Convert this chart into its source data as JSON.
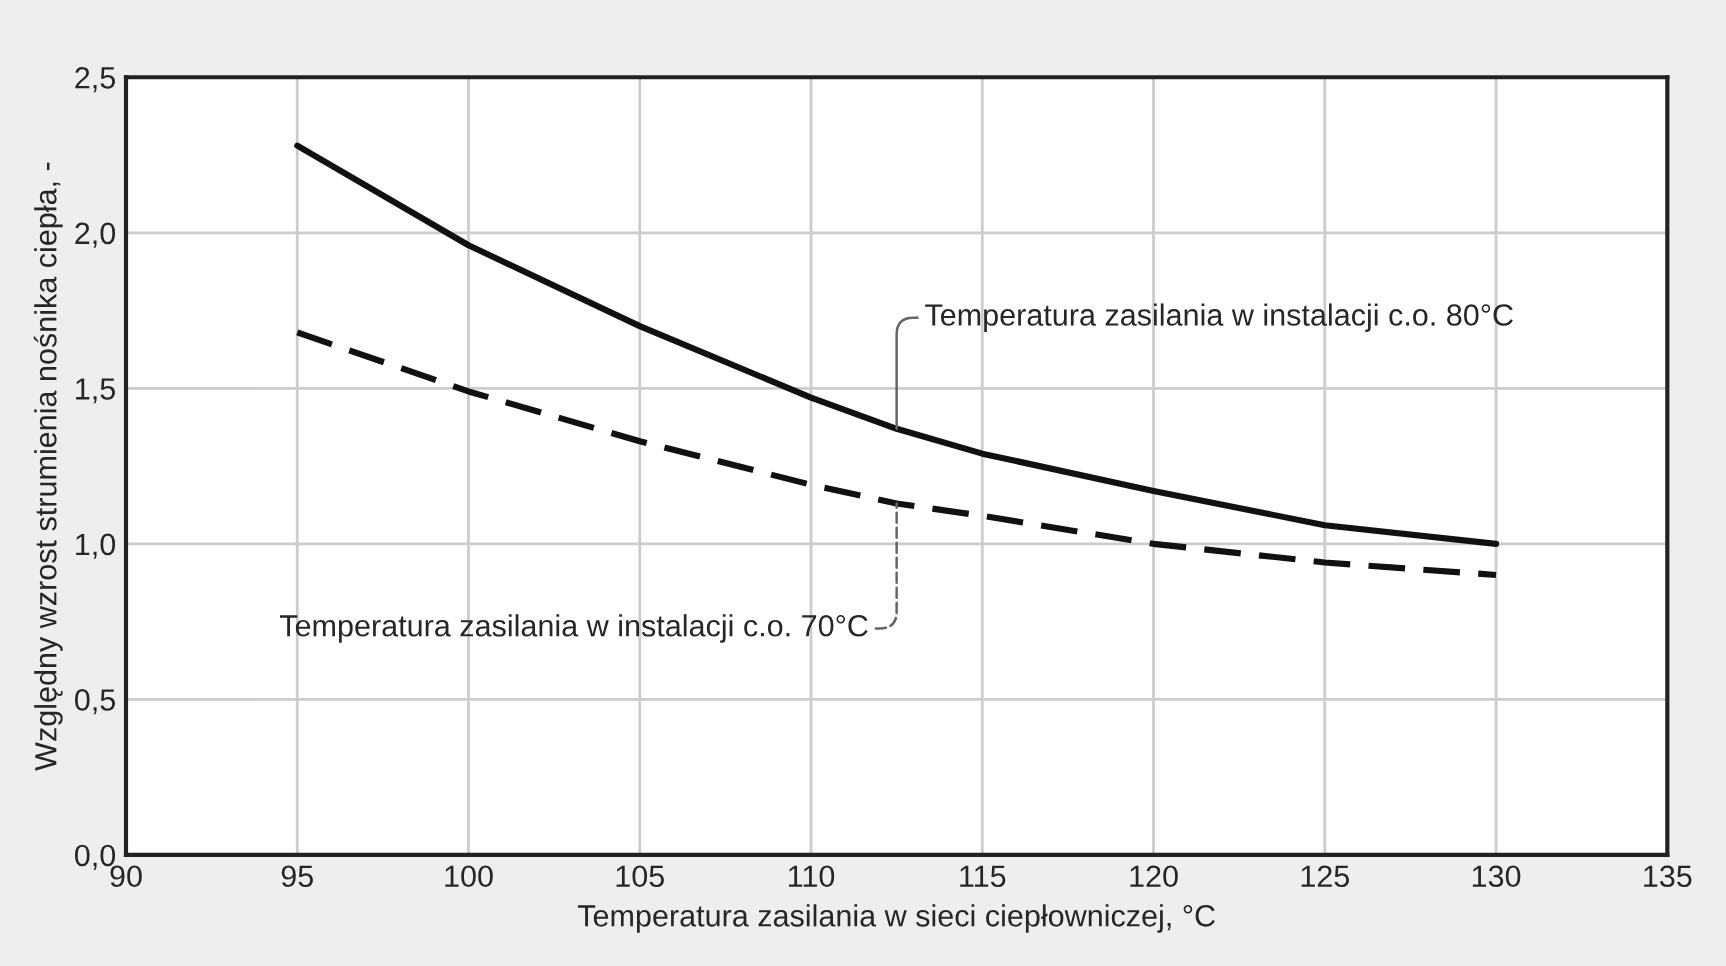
{
  "chart_data": {
    "type": "line",
    "xlabel": "Temperatura zasilania w sieci ciepłowniczej, °C",
    "ylabel": "Względny wzrost strumienia nośnika ciepła, -",
    "x": [
      95,
      100,
      105,
      110,
      112.5,
      115,
      120,
      125,
      130
    ],
    "series": [
      {
        "color": "#111111",
        "line_style": "solid",
        "values": [
          2.28,
          1.96,
          1.7,
          1.47,
          1.37,
          1.29,
          1.17,
          1.06,
          1.0
        ]
      },
      {
        "color": "#111111",
        "line_style": "dashed",
        "values": [
          1.68,
          1.49,
          1.33,
          1.19,
          1.13,
          1.09,
          1.0,
          0.94,
          0.9
        ]
      }
    ],
    "annotations": [
      {
        "text": "Temperatura zasilania w instalacji c.o. 80°C",
        "x": 112.5,
        "y": 1.37
      },
      {
        "text": "Temperatura zasilania w instalacji c.o. 70°C",
        "x": 112.5,
        "y": 1.13
      }
    ],
    "xlim": [
      90,
      135
    ],
    "xticks": [
      90,
      95,
      100,
      105,
      110,
      115,
      120,
      125,
      130,
      135
    ],
    "ylim": [
      0,
      2.5
    ],
    "yticks": [
      {
        "value": 0,
        "label": "0,0"
      },
      {
        "value": 0.5,
        "label": "0,5"
      },
      {
        "value": 1.0,
        "label": "1,0"
      },
      {
        "value": 1.5,
        "label": "1,5"
      },
      {
        "value": 2.0,
        "label": "2,0"
      },
      {
        "value": 2.5,
        "label": "2,5"
      }
    ],
    "grid": true,
    "legend": false,
    "marker": "none"
  }
}
